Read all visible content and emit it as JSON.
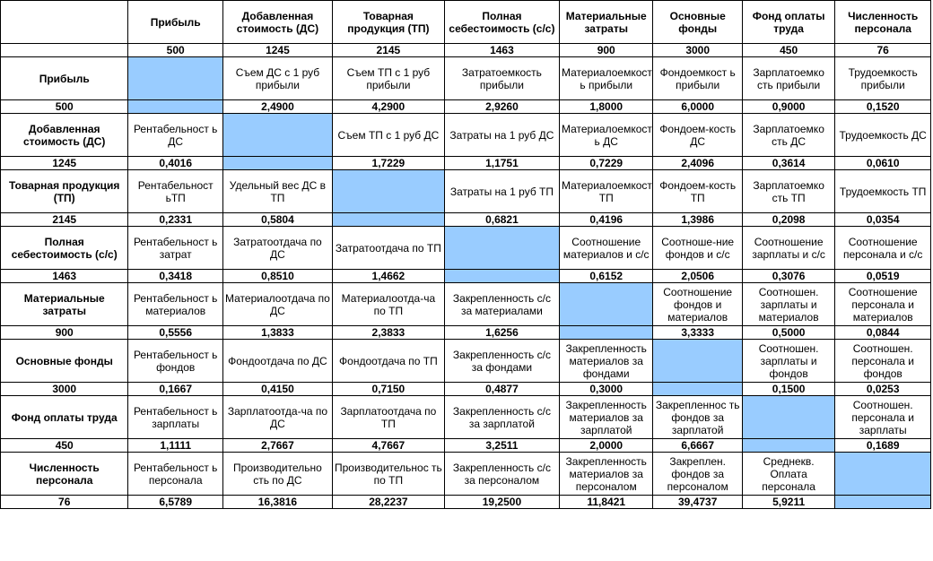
{
  "columns": [
    {
      "name": "Прибыль",
      "value": "500"
    },
    {
      "name": "Добавленная стоимость (ДС)",
      "value": "1245"
    },
    {
      "name": "Товарная продукция (ТП)",
      "value": "2145"
    },
    {
      "name": "Полная себестоимость (с/с)",
      "value": "1463"
    },
    {
      "name": "Материальные затраты",
      "value": "900"
    },
    {
      "name": "Основные фонды",
      "value": "3000"
    },
    {
      "name": "Фонд оплаты труда",
      "value": "450"
    },
    {
      "name": "Численность персонала",
      "value": "76"
    }
  ],
  "rows": [
    {
      "name": "Прибыль",
      "value": "500",
      "texts": [
        "",
        "Съем ДС с 1 руб прибыли",
        "Съем ТП с 1 руб прибыли",
        "Затратоемкость прибыли",
        "Материалоемкост ь прибыли",
        "Фондоемкост ь прибыли",
        "Зарплатоемко сть прибыли",
        "Трудоемкость прибыли"
      ],
      "values": [
        "",
        "2,4900",
        "4,2900",
        "2,9260",
        "1,8000",
        "6,0000",
        "0,9000",
        "0,1520"
      ]
    },
    {
      "name": "Добавленная стоимость (ДС)",
      "value": "1245",
      "texts": [
        "Рентабельност ь ДС",
        "",
        "Съем ТП с 1 руб ДС",
        "Затраты на 1 руб ДС",
        "Материалоемкост ь ДС",
        "Фондоем-кость ДС",
        "Зарплатоемко сть ДС",
        "Трудоемкость ДС"
      ],
      "values": [
        "0,4016",
        "",
        "1,7229",
        "1,1751",
        "0,7229",
        "2,4096",
        "0,3614",
        "0,0610"
      ]
    },
    {
      "name": "Товарная продукция (ТП)",
      "value": "2145",
      "texts": [
        "Рентабельност ьТП",
        "Удельный вес ДС в ТП",
        "",
        "Затраты на 1 руб ТП",
        "Материалоемкость ТП",
        "Фондоем-кость ТП",
        "Зарплатоемко сть ТП",
        "Трудоемкость ТП"
      ],
      "values": [
        "0,2331",
        "0,5804",
        "",
        "0,6821",
        "0,4196",
        "1,3986",
        "0,2098",
        "0,0354"
      ]
    },
    {
      "name": "Полная себестоимость (с/с)",
      "value": "1463",
      "texts": [
        "Рентабельност ь затрат",
        "Затратоотдача по ДС",
        "Затратоотдача по ТП",
        "",
        "Соотношение материалов и с/с",
        "Соотноше-ние фондов и с/с",
        "Соотношение зарплаты и с/с",
        "Соотношение персонала и с/с"
      ],
      "values": [
        "0,3418",
        "0,8510",
        "1,4662",
        "",
        "0,6152",
        "2,0506",
        "0,3076",
        "0,0519"
      ]
    },
    {
      "name": "Материальные затраты",
      "value": "900",
      "texts": [
        "Рентабельност ь материалов",
        "Материалоотдача по ДС",
        "Материалоотда-ча по ТП",
        "Закрепленность с/с за материалами",
        "",
        "Соотношение фондов и материалов",
        "Соотношен. зарплаты и материалов",
        "Соотношение персонала и материалов"
      ],
      "values": [
        "0,5556",
        "1,3833",
        "2,3833",
        "1,6256",
        "",
        "3,3333",
        "0,5000",
        "0,0844"
      ]
    },
    {
      "name": "Основные фонды",
      "value": "3000",
      "texts": [
        "Рентабельност ь фондов",
        "Фондоотдача по ДС",
        "Фондоотдача по ТП",
        "Закрепленность с/с за фондами",
        "Закрепленность материалов за фондами",
        "",
        "Соотношен. зарплаты и фондов",
        "Соотношен. персонала и фондов"
      ],
      "values": [
        "0,1667",
        "0,4150",
        "0,7150",
        "0,4877",
        "0,3000",
        "",
        "0,1500",
        "0,0253"
      ]
    },
    {
      "name": "Фонд оплаты труда",
      "value": "450",
      "texts": [
        "Рентабельност ь зарплаты",
        "Зарплатоотда-ча по ДС",
        "Зарплатоотдача по ТП",
        "Закрепленность с/с за зарплатой",
        "Закрепленность материалов за зарплатой",
        "Закрепленнос ть фондов за зарплатой",
        "",
        "Соотношен. персонала и зарплаты"
      ],
      "values": [
        "1,1111",
        "2,7667",
        "4,7667",
        "3,2511",
        "2,0000",
        "6,6667",
        "",
        "0,1689"
      ]
    },
    {
      "name": "Численность персонала",
      "value": "76",
      "texts": [
        "Рентабельност ь персонала",
        "Производительно сть по ДС",
        "Производительнос ть по ТП",
        "Закрепленность с/с за персоналом",
        "Закрепленность материалов за персоналом",
        "Закреплен. фондов за персоналом",
        "Среднекв. Оплата персонала",
        ""
      ],
      "values": [
        "6,5789",
        "16,3816",
        "28,2237",
        "19,2500",
        "11,8421",
        "39,4737",
        "5,9211",
        ""
      ]
    }
  ]
}
